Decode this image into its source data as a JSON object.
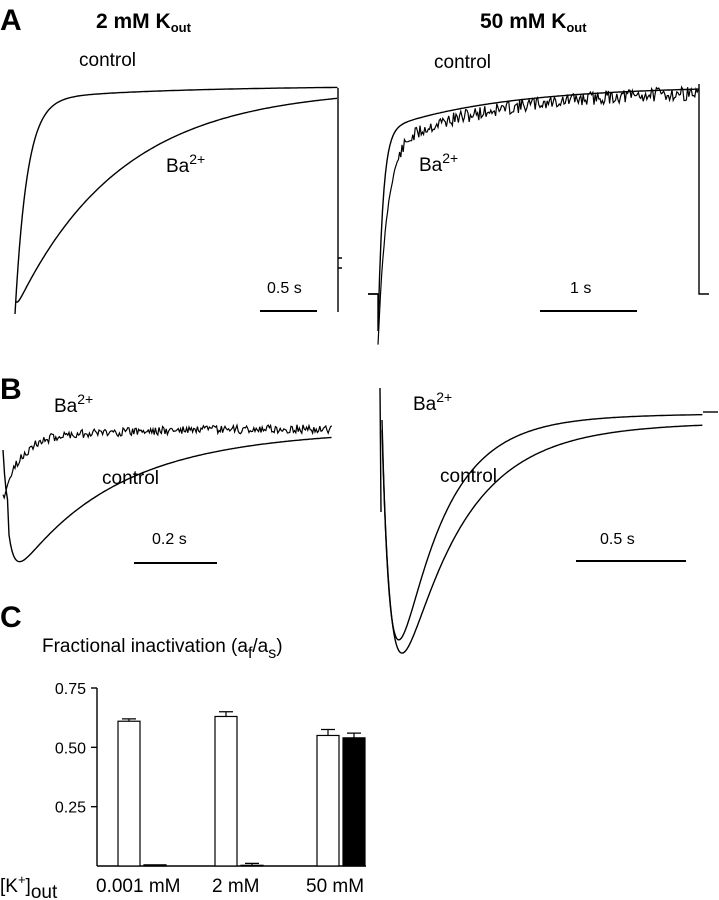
{
  "panels": {
    "A": {
      "letter": "A",
      "left": {
        "condition_main": "2 mM K",
        "condition_sub": "out",
        "control_label": "control",
        "ba_label_main": "Ba",
        "ba_label_sup": "2+",
        "scale_label": "0.5 s"
      },
      "right": {
        "condition_main": "50 mM K",
        "condition_sub": "out",
        "control_label": "control",
        "ba_label_main": "Ba",
        "ba_label_sup": "2+",
        "scale_label": "1 s"
      }
    },
    "B": {
      "letter": "B",
      "left": {
        "ba_label_main": "Ba",
        "ba_label_sup": "2+",
        "control_label": "control",
        "scale_label": "0.2 s"
      },
      "right": {
        "ba_label_main": "Ba",
        "ba_label_sup": "2+",
        "control_label": "control",
        "scale_label": "0.5 s"
      }
    },
    "C": {
      "letter": "C",
      "title_main": "Fractional inactivation (a",
      "title_sub1": "f",
      "title_slash": "/a",
      "title_sub2": "s",
      "title_close": ")",
      "x_prefix_main": "[K",
      "x_prefix_sup": "+",
      "x_prefix_close": "]",
      "x_prefix_sub": "out"
    }
  },
  "chart_data": {
    "type": "bar",
    "categories": [
      "0.001 mM",
      "2 mM",
      "50 mM"
    ],
    "series": [
      {
        "fill": "#ffffff",
        "values": [
          0.61,
          0.63,
          0.55
        ],
        "errors": [
          0.01,
          0.02,
          0.025
        ]
      },
      {
        "fill": "#000000",
        "values": [
          0.005,
          0.003,
          0.54
        ],
        "errors": [
          0.0,
          0.008,
          0.02
        ]
      }
    ],
    "ylim": [
      0,
      0.75
    ],
    "yticks": [
      "0.75",
      "0.50",
      "0.25"
    ],
    "ytick_values": [
      0.75,
      0.5,
      0.25
    ],
    "grid": false
  }
}
